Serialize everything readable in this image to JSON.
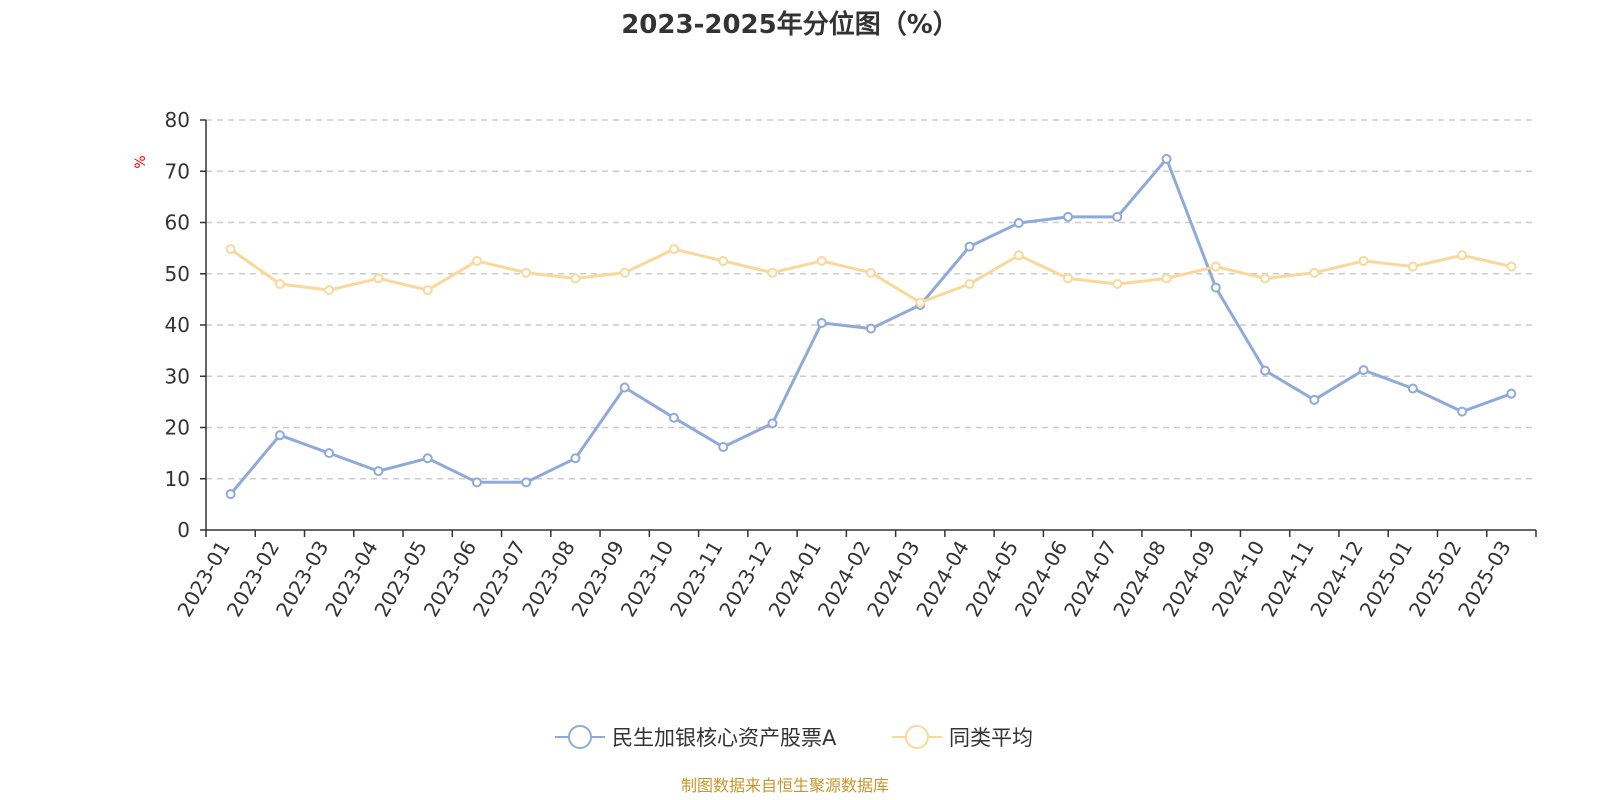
{
  "chart_data": {
    "type": "line",
    "title": "2023-2025年分位图（%）",
    "ylabel": "%",
    "xlabel": "",
    "ylim": [
      0,
      80
    ],
    "yticks": [
      0,
      10,
      20,
      30,
      40,
      50,
      60,
      70,
      80
    ],
    "grid": true,
    "legend_position": "bottom",
    "categories": [
      "2023-01",
      "2023-02",
      "2023-03",
      "2023-04",
      "2023-05",
      "2023-06",
      "2023-07",
      "2023-08",
      "2023-09",
      "2023-10",
      "2023-11",
      "2023-12",
      "2024-01",
      "2024-02",
      "2024-03",
      "2024-04",
      "2024-05",
      "2024-06",
      "2024-07",
      "2024-08",
      "2024-09",
      "2024-10",
      "2024-11",
      "2024-12",
      "2025-01",
      "2025-02",
      "2025-03"
    ],
    "series": [
      {
        "name": "民生加银核心资产股票A",
        "color": "#8eaad8",
        "values": [
          7.0,
          18.5,
          15.0,
          11.5,
          14.0,
          9.3,
          9.3,
          14.0,
          27.8,
          21.9,
          16.2,
          20.8,
          40.4,
          39.3,
          43.9,
          55.3,
          59.9,
          61.1,
          61.1,
          72.4,
          47.3,
          31.1,
          25.4,
          31.2,
          27.6,
          23.1,
          26.6
        ]
      },
      {
        "name": "同类平均",
        "color": "#fbd89a",
        "values": [
          54.8,
          48.0,
          46.8,
          49.1,
          46.8,
          52.5,
          50.2,
          49.1,
          50.2,
          54.8,
          52.5,
          50.2,
          52.5,
          50.2,
          44.4,
          48.0,
          53.6,
          49.1,
          48.0,
          49.1,
          51.4,
          49.1,
          50.2,
          52.5,
          51.4,
          53.6,
          51.4
        ]
      }
    ]
  },
  "source": {
    "text": "制图数据来自恒生聚源数据库",
    "color": "#c8962a"
  },
  "colors": {
    "axis": "#333333",
    "grid": "#cccccc",
    "unit": "#ff0000"
  }
}
